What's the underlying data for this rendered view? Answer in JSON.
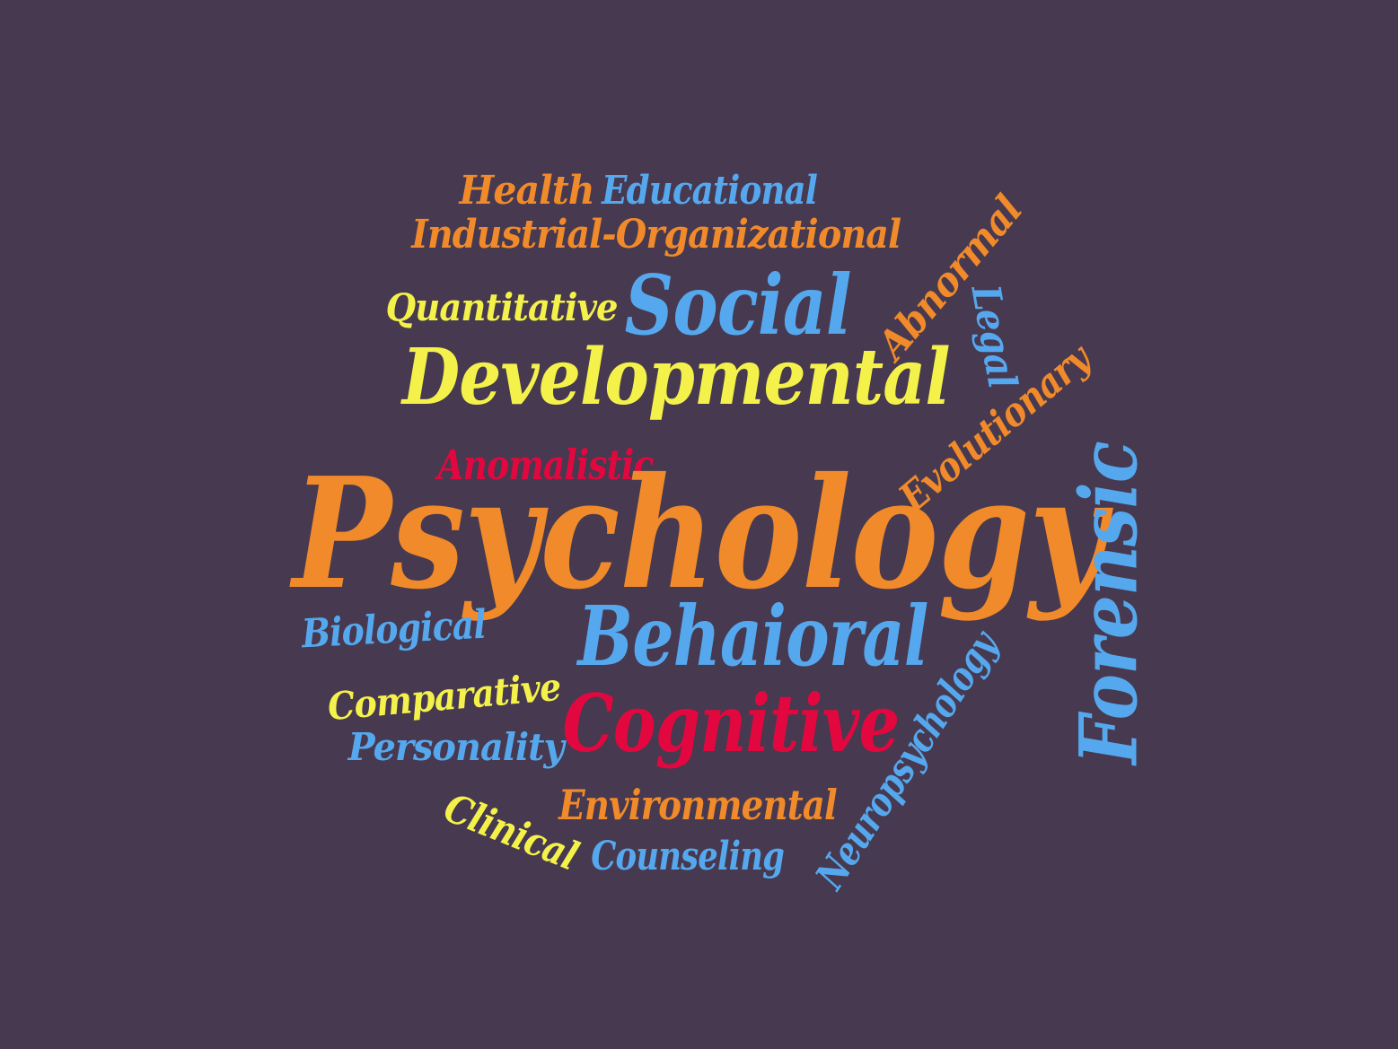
{
  "colors": {
    "background": "#463950",
    "orange": "#F08A2A",
    "blue": "#56A8EE",
    "yellow": "#F4F24A",
    "red": "#E2083F"
  },
  "words": [
    {
      "id": "health",
      "text": "Health",
      "color": "orange"
    },
    {
      "id": "educational",
      "text": "Educational",
      "color": "blue"
    },
    {
      "id": "industrial-organizational",
      "text": "Industrial-Organizational",
      "color": "orange"
    },
    {
      "id": "quantitative",
      "text": "Quantitative",
      "color": "yellow"
    },
    {
      "id": "social",
      "text": "Social",
      "color": "blue"
    },
    {
      "id": "abnormal",
      "text": "Abnormal",
      "color": "orange"
    },
    {
      "id": "legal",
      "text": "Legal",
      "color": "blue"
    },
    {
      "id": "developmental",
      "text": "Developmental",
      "color": "yellow"
    },
    {
      "id": "evolutionary",
      "text": "Evolutionary",
      "color": "orange"
    },
    {
      "id": "anomalistic",
      "text": "Anomalistic",
      "color": "red"
    },
    {
      "id": "psychology",
      "text": "Psychology",
      "color": "orange"
    },
    {
      "id": "forensic",
      "text": "Forensic",
      "color": "blue"
    },
    {
      "id": "biological",
      "text": "Biological",
      "color": "blue"
    },
    {
      "id": "behaioral",
      "text": "Behaioral",
      "color": "blue"
    },
    {
      "id": "neuropsychology",
      "text": "Neuropsychology",
      "color": "blue"
    },
    {
      "id": "comparative",
      "text": "Comparative",
      "color": "yellow"
    },
    {
      "id": "cognitive",
      "text": "Cognitive",
      "color": "red"
    },
    {
      "id": "personality",
      "text": "Personality",
      "color": "blue"
    },
    {
      "id": "environmental",
      "text": "Environmental",
      "color": "orange"
    },
    {
      "id": "clinical",
      "text": "Clinical",
      "color": "yellow"
    },
    {
      "id": "counseling",
      "text": "Counseling",
      "color": "blue"
    }
  ]
}
